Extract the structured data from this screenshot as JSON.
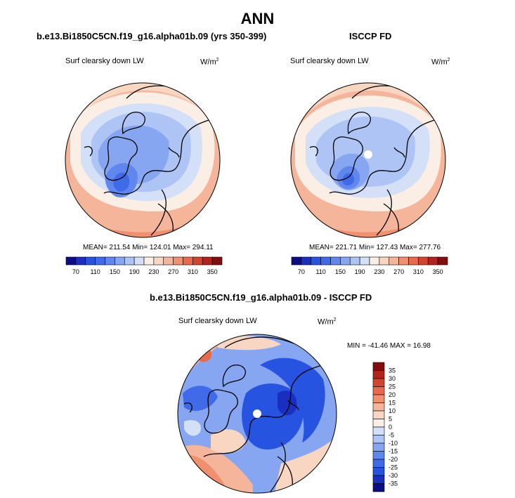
{
  "page_title": "ANN",
  "chart_data": [
    {
      "type": "heatmap",
      "projection": "north-polar-stereographic",
      "title": "b.e13.Bi1850C5CN.f19_g16.alpha01b.09 (yrs 350-399)",
      "variable": "Surf clearsky down LW",
      "units_base": "W/m",
      "units_exp": "2",
      "stats": {
        "mean": "211.54",
        "min": "124.01",
        "max": "294.11"
      },
      "stats_text": "MEAN= 211.54  Min= 124.01  Max= 294.11",
      "colorbar": {
        "orientation": "horizontal",
        "levels": [
          70,
          90,
          110,
          130,
          150,
          170,
          190,
          210,
          230,
          250,
          270,
          290,
          310,
          330,
          350
        ],
        "tick_labels": [
          "70",
          "110",
          "150",
          "190",
          "230",
          "270",
          "310",
          "350"
        ],
        "colors": [
          "#0c0c85",
          "#1a2fbf",
          "#2653e0",
          "#3f6ae8",
          "#5f87ee",
          "#86a6f2",
          "#adc4f5",
          "#d3e0f8",
          "#faeee5",
          "#f9d6c2",
          "#f5b59a",
          "#f0906f",
          "#e86a4a",
          "#d3442d",
          "#b3221b",
          "#820d0d"
        ]
      }
    },
    {
      "type": "heatmap",
      "projection": "north-polar-stereographic",
      "title": "ISCCP FD",
      "variable": "Surf clearsky down LW",
      "units_base": "W/m",
      "units_exp": "2",
      "stats": {
        "mean": "221.71",
        "min": "127.43",
        "max": "277.76"
      },
      "stats_text": "MEAN= 221.71  Min= 127.43  Max= 277.76",
      "colorbar": {
        "orientation": "horizontal",
        "levels": [
          70,
          90,
          110,
          130,
          150,
          170,
          190,
          210,
          230,
          250,
          270,
          290,
          310,
          330,
          350
        ],
        "tick_labels": [
          "70",
          "110",
          "150",
          "190",
          "230",
          "270",
          "310",
          "350"
        ],
        "colors": [
          "#0c0c85",
          "#1a2fbf",
          "#2653e0",
          "#3f6ae8",
          "#5f87ee",
          "#86a6f2",
          "#adc4f5",
          "#d3e0f8",
          "#faeee5",
          "#f9d6c2",
          "#f5b59a",
          "#f0906f",
          "#e86a4a",
          "#d3442d",
          "#b3221b",
          "#820d0d"
        ]
      }
    },
    {
      "type": "heatmap",
      "projection": "north-polar-stereographic",
      "title": "b.e13.Bi1850C5CN.f19_g16.alpha01b.09 - ISCCP FD",
      "variable": "Surf clearsky down LW",
      "units_base": "W/m",
      "units_exp": "2",
      "stats": {
        "min": "-41.46",
        "max": "16.98"
      },
      "stats_text": "MIN = -41.46 MAX =  16.98",
      "colorbar": {
        "orientation": "vertical",
        "levels": [
          -35,
          -30,
          -25,
          -20,
          -15,
          -10,
          -5,
          0,
          5,
          10,
          15,
          20,
          25,
          30,
          35
        ],
        "tick_labels": [
          "35",
          "30",
          "25",
          "20",
          "15",
          "10",
          "5",
          "0",
          "-5",
          "-10",
          "-15",
          "-20",
          "-25",
          "-30",
          "-35"
        ],
        "colors": [
          "#0c0c85",
          "#1a2fbf",
          "#2653e0",
          "#3f6ae8",
          "#5f87ee",
          "#86a6f2",
          "#adc4f5",
          "#d3e0f8",
          "#faeee5",
          "#f9d6c2",
          "#f5b59a",
          "#f0906f",
          "#e86a4a",
          "#d3442d",
          "#b3221b",
          "#820d0d"
        ]
      }
    }
  ]
}
